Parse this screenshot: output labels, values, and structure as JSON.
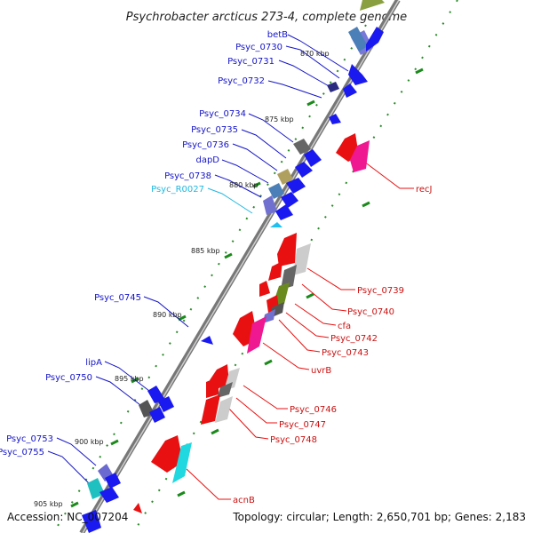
{
  "title": "Psychrobacter arcticus 273-4, complete genome",
  "footer": {
    "accession": "Accession: NC_007204",
    "topology": "Topology: circular; Length: 2,650,701 bp; Genes: 2,183"
  },
  "colors": {
    "backbone": "#777777",
    "leader_left": "#1515c8",
    "leader_left_rna": "#20b8e0",
    "leader_right": "#e81010",
    "tick": "#1a8a1a"
  },
  "kbp_marks": [
    "870 kbp",
    "875 kbp",
    "880 kbp",
    "885 kbp",
    "890 kbp",
    "895 kbp",
    "900 kbp",
    "905 kbp"
  ],
  "genes_left": [
    "betB",
    "Psyc_0730",
    "Psyc_0731",
    "Psyc_0732",
    "Psyc_0734",
    "Psyc_0735",
    "Psyc_0736",
    "dapD",
    "Psyc_0738",
    "Psyc_R0027",
    "Psyc_0745",
    "lipA",
    "Psyc_0750",
    "Psyc_0753",
    "Psyc_0755"
  ],
  "genes_right": [
    "recJ",
    "Psyc_0739",
    "Psyc_0740",
    "cfa",
    "Psyc_0742",
    "Psyc_0743",
    "uvrB",
    "Psyc_0746",
    "Psyc_0747",
    "Psyc_0748",
    "acnB"
  ]
}
